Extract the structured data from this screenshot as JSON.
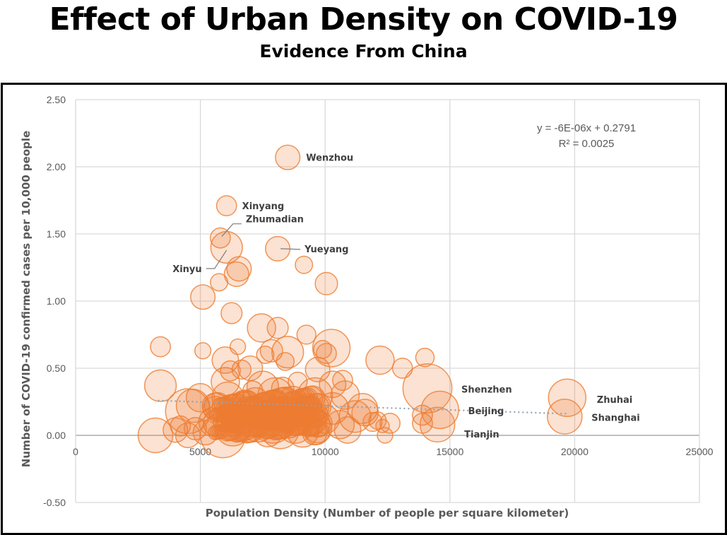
{
  "chart_data": {
    "type": "scatter",
    "subtype": "bubble",
    "title": "Effect of Urban Density on COVID-19",
    "subtitle": "Evidence From China",
    "xlabel": "Population Density (Number of people per square kilometer)",
    "ylabel": "Number of COVID-19 confirmed cases per 10,000 people",
    "xlim": [
      0,
      25000
    ],
    "ylim": [
      -0.5,
      2.5
    ],
    "xticks": [
      "0",
      "5000",
      "10000",
      "15000",
      "20000",
      "25000"
    ],
    "xtick_values": [
      0,
      5000,
      10000,
      15000,
      20000,
      25000
    ],
    "yticks": [
      "2.50",
      "2.00",
      "1.50",
      "1.00",
      "0.50",
      "0.00",
      "-0.50"
    ],
    "ytick_values": [
      2.5,
      2.0,
      1.5,
      1.0,
      0.5,
      0.0,
      -0.5
    ],
    "grid": true,
    "bubble_color": "#ED7D31",
    "trendline": {
      "type": "linear",
      "equation": "y = -6E-06x + 0.2791",
      "r_squared": "R² = 0.0025",
      "slope": -6e-06,
      "intercept": 0.2791,
      "x_range": [
        3300,
        19700
      ],
      "color": "#8EA3B8",
      "style": "dotted"
    },
    "labeled_points": [
      {
        "name": "Wenzhou",
        "x": 8500,
        "y": 2.07,
        "size": 3
      },
      {
        "name": "Xinyang",
        "x": 6050,
        "y": 1.71,
        "size": 2
      },
      {
        "name": "Zhumadian",
        "x": 5800,
        "y": 1.47,
        "size": 2
      },
      {
        "name": "Xinyu",
        "x": 6050,
        "y": 1.4,
        "size": 5
      },
      {
        "name": "Yueyang",
        "x": 8100,
        "y": 1.39,
        "size": 3
      },
      {
        "name": "Shenzhen",
        "x": 14100,
        "y": 0.35,
        "size": 12
      },
      {
        "name": "Beijing",
        "x": 14600,
        "y": 0.19,
        "size": 7
      },
      {
        "name": "Tianjin",
        "x": 14500,
        "y": 0.08,
        "size": 6
      },
      {
        "name": "Zhuhai",
        "x": 19700,
        "y": 0.28,
        "size": 7
      },
      {
        "name": "Shanghai",
        "x": 19600,
        "y": 0.14,
        "size": 6
      }
    ],
    "points": [
      {
        "x": 3400,
        "y": 0.66,
        "size": 2
      },
      {
        "x": 3400,
        "y": 0.37,
        "size": 5
      },
      {
        "x": 3200,
        "y": 0.0,
        "size": 6
      },
      {
        "x": 4500,
        "y": 0.18,
        "size": 10
      },
      {
        "x": 5100,
        "y": 0.63,
        "size": 1.3
      },
      {
        "x": 5100,
        "y": 1.03,
        "size": 3
      },
      {
        "x": 5750,
        "y": 1.14,
        "size": 1.5
      },
      {
        "x": 6550,
        "y": 1.24,
        "size": 3
      },
      {
        "x": 6450,
        "y": 1.2,
        "size": 3
      },
      {
        "x": 6250,
        "y": 0.91,
        "size": 2.2
      },
      {
        "x": 6500,
        "y": 0.66,
        "size": 1.2
      },
      {
        "x": 9150,
        "y": 1.27,
        "size": 1.5
      },
      {
        "x": 10050,
        "y": 1.13,
        "size": 2.5
      },
      {
        "x": 7450,
        "y": 0.8,
        "size": 4
      },
      {
        "x": 8100,
        "y": 0.8,
        "size": 2.2
      },
      {
        "x": 9250,
        "y": 0.75,
        "size": 1.8
      },
      {
        "x": 8500,
        "y": 0.62,
        "size": 5
      },
      {
        "x": 7850,
        "y": 0.63,
        "size": 2.5
      },
      {
        "x": 7600,
        "y": 0.6,
        "size": 1.5
      },
      {
        "x": 10250,
        "y": 0.65,
        "size": 7
      },
      {
        "x": 9900,
        "y": 0.64,
        "size": 1.6
      },
      {
        "x": 10050,
        "y": 0.61,
        "size": 2
      },
      {
        "x": 6000,
        "y": 0.56,
        "size": 3.5
      },
      {
        "x": 7000,
        "y": 0.5,
        "size": 3
      },
      {
        "x": 8400,
        "y": 0.55,
        "size": 1.6
      },
      {
        "x": 9700,
        "y": 0.49,
        "size": 3
      },
      {
        "x": 12200,
        "y": 0.56,
        "size": 4
      },
      {
        "x": 13100,
        "y": 0.5,
        "size": 2
      },
      {
        "x": 14000,
        "y": 0.58,
        "size": 1.7
      },
      {
        "x": 6650,
        "y": 0.49,
        "size": 1.8
      },
      {
        "x": 6200,
        "y": 0.48,
        "size": 2
      },
      {
        "x": 6000,
        "y": 0.4,
        "size": 4
      },
      {
        "x": 7500,
        "y": 0.36,
        "size": 5
      },
      {
        "x": 5000,
        "y": 0.28,
        "size": 4
      },
      {
        "x": 4700,
        "y": 0.22,
        "size": 5.5
      },
      {
        "x": 6100,
        "y": 0.28,
        "size": 5
      },
      {
        "x": 8000,
        "y": 0.3,
        "size": 6
      },
      {
        "x": 9600,
        "y": 0.3,
        "size": 6
      },
      {
        "x": 10300,
        "y": 0.38,
        "size": 3.5
      },
      {
        "x": 10700,
        "y": 0.41,
        "size": 2
      },
      {
        "x": 10800,
        "y": 0.3,
        "size": 4
      },
      {
        "x": 11500,
        "y": 0.2,
        "size": 4.5
      },
      {
        "x": 11200,
        "y": 0.14,
        "size": 5
      },
      {
        "x": 11600,
        "y": 0.17,
        "size": 3.5
      },
      {
        "x": 11900,
        "y": 0.1,
        "size": 1.8
      },
      {
        "x": 12100,
        "y": 0.11,
        "size": 1.5
      },
      {
        "x": 12300,
        "y": 0.07,
        "size": 0.9
      },
      {
        "x": 12400,
        "y": 0.0,
        "size": 1.2
      },
      {
        "x": 12600,
        "y": 0.09,
        "size": 2
      },
      {
        "x": 13900,
        "y": 0.15,
        "size": 2
      },
      {
        "x": 13900,
        "y": 0.09,
        "size": 2
      },
      {
        "x": 4000,
        "y": 0.04,
        "size": 3
      },
      {
        "x": 4200,
        "y": 0.07,
        "size": 2
      },
      {
        "x": 4500,
        "y": 0.0,
        "size": 3
      },
      {
        "x": 4800,
        "y": 0.05,
        "size": 2.5
      },
      {
        "x": 5200,
        "y": 0.02,
        "size": 3
      },
      {
        "x": 5500,
        "y": 0.1,
        "size": 4
      },
      {
        "x": 5900,
        "y": 0.0,
        "size": 10
      },
      {
        "x": 6300,
        "y": 0.05,
        "size": 6
      },
      {
        "x": 6700,
        "y": 0.1,
        "size": 7
      },
      {
        "x": 7000,
        "y": 0.14,
        "size": 8
      },
      {
        "x": 7300,
        "y": 0.08,
        "size": 6
      },
      {
        "x": 7600,
        "y": 0.18,
        "size": 7
      },
      {
        "x": 7900,
        "y": 0.1,
        "size": 9
      },
      {
        "x": 8200,
        "y": 0.04,
        "size": 7
      },
      {
        "x": 8500,
        "y": 0.13,
        "size": 8
      },
      {
        "x": 8800,
        "y": 0.07,
        "size": 6
      },
      {
        "x": 9100,
        "y": 0.03,
        "size": 5
      },
      {
        "x": 9400,
        "y": 0.11,
        "size": 5
      },
      {
        "x": 9700,
        "y": 0.05,
        "size": 4
      },
      {
        "x": 10000,
        "y": 0.12,
        "size": 4
      },
      {
        "x": 10300,
        "y": 0.2,
        "size": 5
      },
      {
        "x": 10600,
        "y": 0.08,
        "size": 4
      },
      {
        "x": 10900,
        "y": 0.04,
        "size": 3.5
      },
      {
        "x": 6800,
        "y": 0.22,
        "size": 5
      },
      {
        "x": 7200,
        "y": 0.25,
        "size": 4
      },
      {
        "x": 8000,
        "y": 0.2,
        "size": 6
      },
      {
        "x": 8700,
        "y": 0.26,
        "size": 4
      },
      {
        "x": 9000,
        "y": 0.18,
        "size": 5
      },
      {
        "x": 6400,
        "y": 0.16,
        "size": 5
      },
      {
        "x": 5600,
        "y": 0.2,
        "size": 3
      },
      {
        "x": 7700,
        "y": 0.02,
        "size": 4
      },
      {
        "x": 9300,
        "y": 0.22,
        "size": 3
      },
      {
        "x": 8300,
        "y": 0.35,
        "size": 2.5
      },
      {
        "x": 8900,
        "y": 0.4,
        "size": 1.8
      },
      {
        "x": 7100,
        "y": 0.33,
        "size": 2
      }
    ]
  }
}
